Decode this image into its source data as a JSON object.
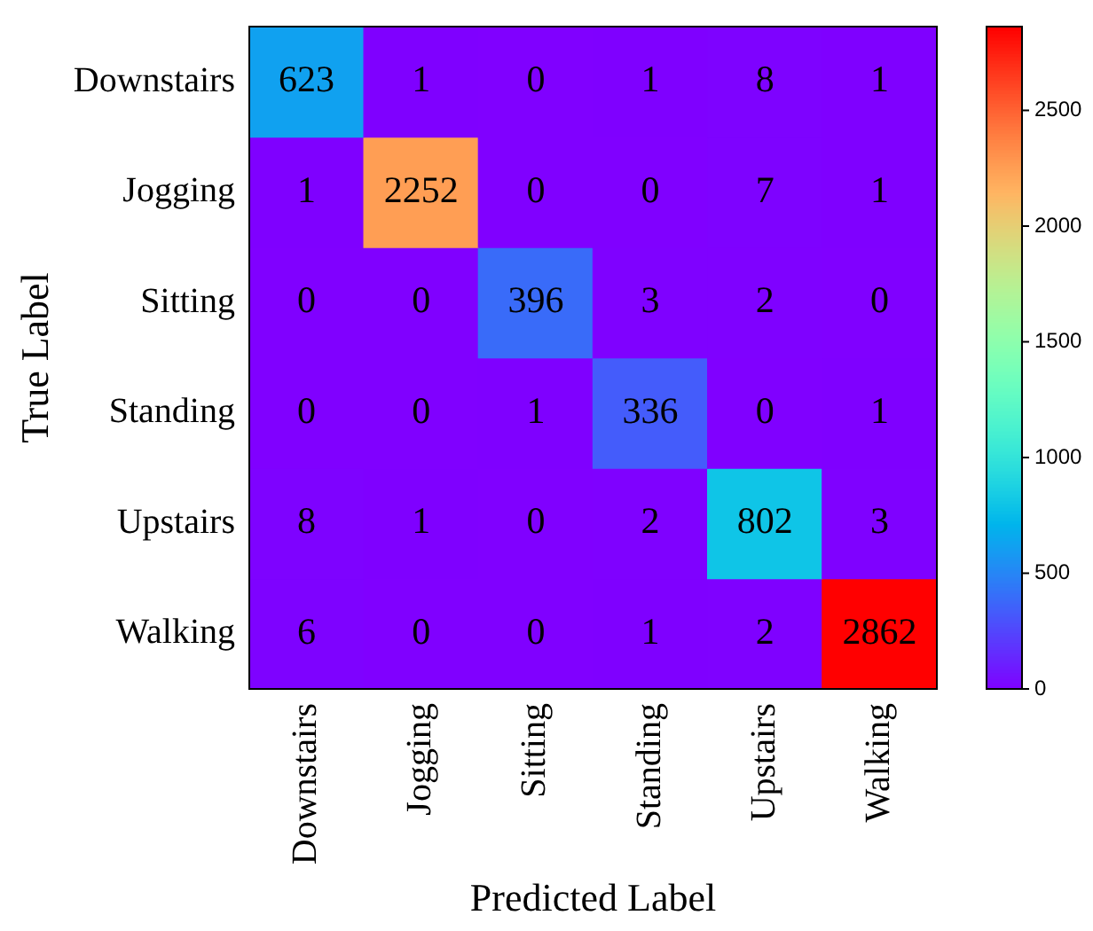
{
  "chart_data": {
    "type": "heatmap",
    "xlabel": "Predicted Label",
    "ylabel": "True Label",
    "categories": [
      "Downstairs",
      "Jogging",
      "Sitting",
      "Standing",
      "Upstairs",
      "Walking"
    ],
    "y_categories": [
      "Downstairs",
      "Jogging",
      "Sitting",
      "Standing",
      "Upstairs",
      "Walking"
    ],
    "cells": [
      [
        623,
        1,
        0,
        1,
        8,
        1
      ],
      [
        1,
        2252,
        0,
        0,
        7,
        1
      ],
      [
        0,
        0,
        396,
        3,
        2,
        0
      ],
      [
        0,
        0,
        1,
        336,
        0,
        1
      ],
      [
        8,
        1,
        0,
        2,
        802,
        3
      ],
      [
        6,
        0,
        0,
        1,
        2,
        2862
      ]
    ],
    "clim": [
      0,
      2862
    ],
    "cticks": [
      0,
      500,
      1000,
      1500,
      2000,
      2500
    ],
    "data_labels": true
  }
}
